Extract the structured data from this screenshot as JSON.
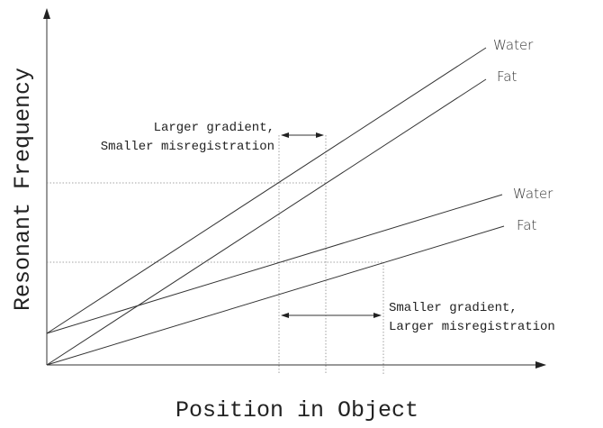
{
  "axes": {
    "y_label": "Resonant Frequency",
    "x_label": "Position in Object"
  },
  "lines": [
    {
      "label": "Water"
    },
    {
      "label": "Fat"
    },
    {
      "label": "Water"
    },
    {
      "label": "Fat"
    }
  ],
  "annotations": [
    {
      "lines": [
        "Larger gradient,",
        "Smaller misregistration"
      ]
    },
    {
      "lines": [
        "Smaller gradient,",
        "Larger misregistration"
      ]
    }
  ]
}
